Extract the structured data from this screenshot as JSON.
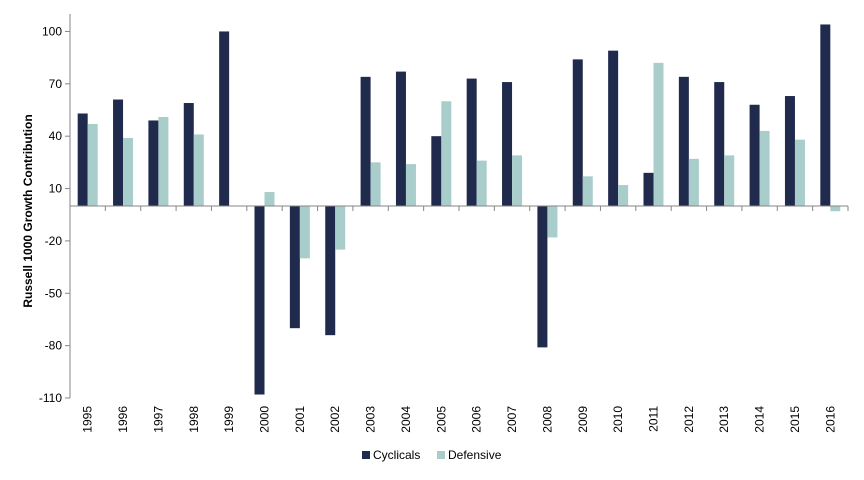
{
  "chart_data": {
    "type": "bar",
    "ylabel": "Russell 1000 Growth Contribution",
    "xlabel": "",
    "ylim": [
      -110,
      110
    ],
    "yticks": [
      100,
      70,
      40,
      10,
      -20,
      -50,
      -80,
      -110
    ],
    "categories": [
      "1995",
      "1996",
      "1997",
      "1998",
      "1999",
      "2000",
      "2001",
      "2002",
      "2003",
      "2004",
      "2005",
      "2006",
      "2007",
      "2008",
      "2009",
      "2010",
      "2011",
      "2012",
      "2013",
      "2014",
      "2015",
      "2016"
    ],
    "series": [
      {
        "name": "Cyclicals",
        "color": "#1F2A4D",
        "values": [
          53,
          61,
          49,
          59,
          100,
          -108,
          -70,
          -74,
          74,
          77,
          40,
          73,
          71,
          -81,
          84,
          89,
          19,
          74,
          71,
          58,
          63,
          104
        ]
      },
      {
        "name": "Defensive",
        "color": "#A9CDCB",
        "values": [
          47,
          39,
          51,
          41,
          0,
          8,
          -30,
          -25,
          25,
          24,
          60,
          26,
          29,
          -18,
          17,
          12,
          82,
          27,
          29,
          43,
          38,
          -3
        ]
      }
    ],
    "grid": false,
    "legend_position": "bottom"
  }
}
